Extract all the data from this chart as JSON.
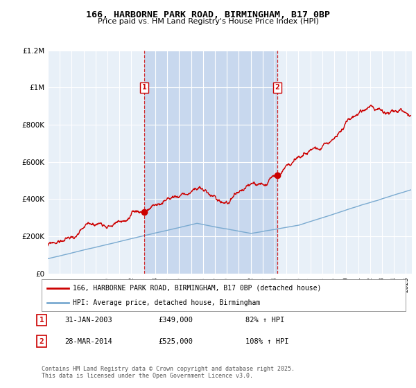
{
  "title": "166, HARBORNE PARK ROAD, BIRMINGHAM, B17 0BP",
  "subtitle": "Price paid vs. HM Land Registry's House Price Index (HPI)",
  "background_color": "#e8f0f8",
  "shade_color": "#c8d8ee",
  "ylim": [
    0,
    1200000
  ],
  "yticks": [
    0,
    200000,
    400000,
    600000,
    800000,
    1000000,
    1200000
  ],
  "ytick_labels": [
    "£0",
    "£200K",
    "£400K",
    "£600K",
    "£800K",
    "£1M",
    "£1.2M"
  ],
  "sale1_date_num": 2003.08,
  "sale1_price": 349000,
  "sale2_date_num": 2014.23,
  "sale2_price": 525000,
  "hpi_line_color": "#7aaad0",
  "price_line_color": "#cc0000",
  "vline_color": "#cc0000",
  "legend_label_price": "166, HARBORNE PARK ROAD, BIRMINGHAM, B17 0BP (detached house)",
  "legend_label_hpi": "HPI: Average price, detached house, Birmingham",
  "footer": "Contains HM Land Registry data © Crown copyright and database right 2025.\nThis data is licensed under the Open Government Licence v3.0.",
  "xstart": 1995,
  "xend": 2025.5
}
